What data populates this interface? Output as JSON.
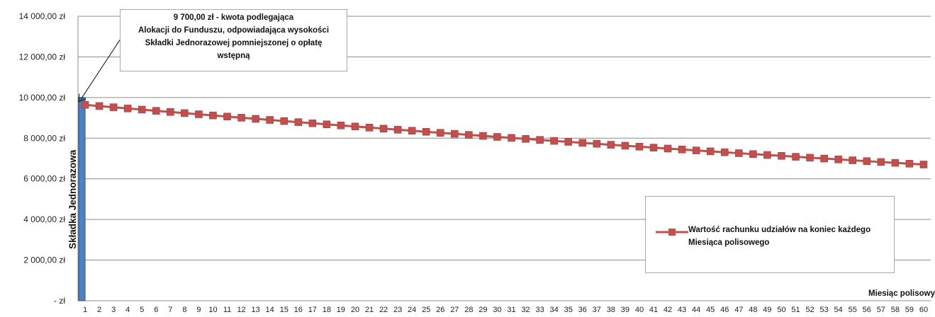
{
  "chart_data": {
    "type": "line",
    "categories": [
      "1",
      "2",
      "3",
      "4",
      "5",
      "6",
      "7",
      "8",
      "9",
      "10",
      "11",
      "12",
      "13",
      "14",
      "15",
      "16",
      "17",
      "18",
      "19",
      "20",
      "21",
      "22",
      "23",
      "24",
      "25",
      "26",
      "27",
      "28",
      "29",
      "30",
      "31",
      "32",
      "33",
      "34",
      "35",
      "36",
      "37",
      "38",
      "39",
      "40",
      "41",
      "42",
      "43",
      "44",
      "45",
      "46",
      "47",
      "48",
      "49",
      "50",
      "51",
      "52",
      "53",
      "54",
      "55",
      "56",
      "57",
      "58",
      "59",
      "60"
    ],
    "series": [
      {
        "name": "Wartość rachunku udziałów na koniec każdego Miesiąca polisowego",
        "color": "#c0504d",
        "marker": "square",
        "values": [
          9640,
          9581,
          9522,
          9463,
          9405,
          9347,
          9290,
          9233,
          9176,
          9120,
          9064,
          9008,
          8953,
          8898,
          8843,
          8789,
          8735,
          8681,
          8628,
          8575,
          8522,
          8470,
          8418,
          8366,
          8315,
          8264,
          8213,
          8163,
          8113,
          8063,
          8014,
          7965,
          7916,
          7867,
          7819,
          7771,
          7723,
          7676,
          7629,
          7582,
          7535,
          7489,
          7443,
          7397,
          7352,
          7307,
          7262,
          7217,
          7173,
          7129,
          7085,
          7041,
          6998,
          6955,
          6912,
          6870,
          6828,
          6786,
          6745,
          6704
        ]
      }
    ],
    "bar": {
      "label": "Składka Jednorazowa",
      "category": "1",
      "value": 10000,
      "color": "#4f81bd"
    },
    "ylim": [
      0,
      14000
    ],
    "yticks": [
      {
        "value": 0,
        "label": "- zł"
      },
      {
        "value": 2000,
        "label": "2 000,00 zł"
      },
      {
        "value": 4000,
        "label": "4 000,00 zł"
      },
      {
        "value": 6000,
        "label": "6 000,00 zł"
      },
      {
        "value": 8000,
        "label": "8 000,00 zł"
      },
      {
        "value": 10000,
        "label": "10 000,00 zł"
      },
      {
        "value": 12000,
        "label": "12 000,00 zł"
      },
      {
        "value": 14000,
        "label": "14 000,00 zł"
      }
    ],
    "xlabel": "Miesiąc polisowy",
    "grid": true,
    "legend_position": "right",
    "annotation": {
      "lines": [
        "9 700,00 zł - kwota podlegająca",
        "Alokacji do Funduszu, odpowiadająca wysokości",
        "Składki Jednorazowej pomniejszonej o opłatę",
        "wstępną"
      ],
      "target_value": 9700
    }
  }
}
